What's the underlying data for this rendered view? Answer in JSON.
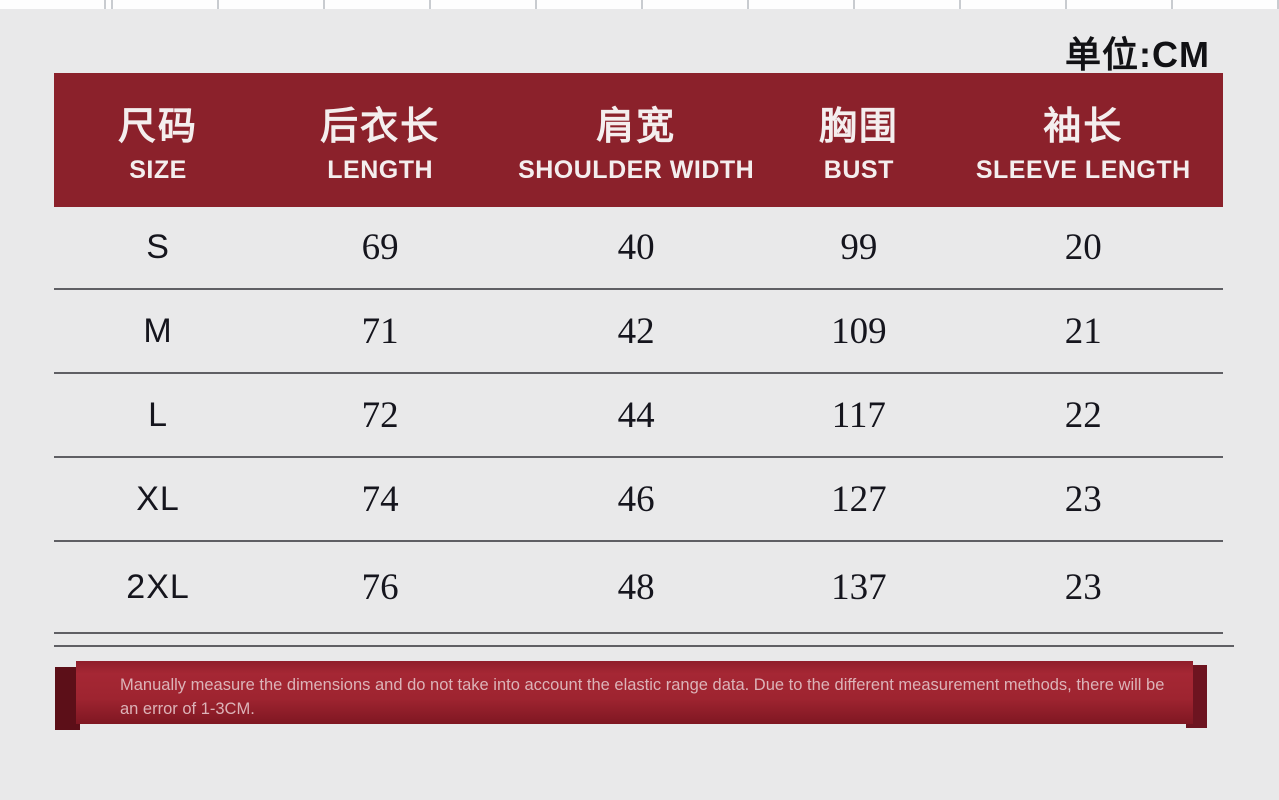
{
  "unit_label": "单位:CM",
  "chart_data": {
    "type": "table",
    "title": "单位:CM",
    "columns": [
      {
        "zh": "尺码",
        "en": "SIZE"
      },
      {
        "zh": "后衣长",
        "en": "LENGTH"
      },
      {
        "zh": "肩宽",
        "en": "SHOULDER WIDTH"
      },
      {
        "zh": "胸围",
        "en": "BUST"
      },
      {
        "zh": "袖长",
        "en": "SLEEVE LENGTH"
      }
    ],
    "rows": [
      [
        "S",
        "69",
        "40",
        "99",
        "20"
      ],
      [
        "M",
        "71",
        "42",
        "109",
        "21"
      ],
      [
        "L",
        "72",
        "44",
        "117",
        "22"
      ],
      [
        "XL",
        "74",
        "46",
        "127",
        "23"
      ],
      [
        "2XL",
        "76",
        "48",
        "137",
        "23"
      ]
    ]
  },
  "note": {
    "lines": [
      "Manually measure the dimensions and do not take into account the elastic range data. Due to the different measurement methods, there will be",
      "an error of 1-3CM."
    ]
  },
  "colors": {
    "background": "#e9e9ea",
    "header_red": "#8b212b",
    "header_text": "#f4eeee",
    "ribbon_red": "#9e2430",
    "ribbon_fold_dark": "#5c0f18",
    "note_text": "#dcb3b8",
    "data_text": "#15151d",
    "divider_gray": "#5f5f64"
  }
}
